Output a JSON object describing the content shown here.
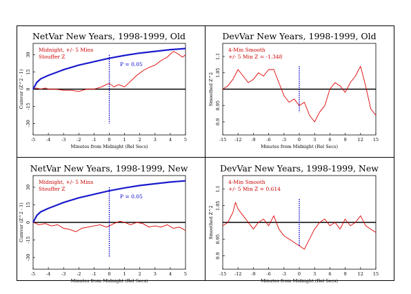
{
  "colors": {
    "background": "#ffffff",
    "frame": "#000000",
    "data_line": "#dd0000",
    "envelope": "#1a1acc",
    "midnight_marker": "#0000cc",
    "annotation_red": "#cc0000",
    "annotation_blue": "#0000cc"
  },
  "chart_data": [
    {
      "type": "line",
      "title": "NetVar New Years, 1998-1999, Old",
      "xlabel": "Minutes from Midnight (Rel Secs)",
      "ylabel": "Cumvar (Z^2 - 1)",
      "xlim": [
        -5,
        5
      ],
      "ylim": [
        -40,
        40
      ],
      "x_ticks": [
        -5,
        -4,
        -3,
        -2,
        -1,
        0,
        1,
        2,
        3,
        4,
        5
      ],
      "y_ticks": [
        -30,
        -15,
        0,
        15,
        30
      ],
      "annotations": [
        "Midnight, +/- 5 Mins",
        "Stouffer Z"
      ],
      "envelope_label": "P = 0.05",
      "midnight_x": 0,
      "series": [
        {
          "role": "data",
          "x": [
            -5,
            -4.8,
            -4.5,
            -4.2,
            -4,
            -3.5,
            -3,
            -2.5,
            -2,
            -1.5,
            -1,
            -0.5,
            -0.2,
            0,
            0.3,
            0.6,
            1,
            1.4,
            1.8,
            2.2,
            2.6,
            3,
            3.4,
            3.8,
            4.2,
            4.5,
            4.8,
            5
          ],
          "y": [
            0,
            1,
            0,
            1,
            0,
            0,
            -1,
            -1,
            -2,
            0,
            0,
            2,
            4,
            5,
            2,
            4,
            2,
            7,
            12,
            16,
            19,
            21,
            25,
            28,
            33,
            31,
            28,
            30
          ]
        },
        {
          "role": "envelope",
          "x": [
            -5,
            -4.75,
            -4.5,
            -4,
            -3.5,
            -3,
            -2,
            -1,
            0,
            1,
            2,
            3,
            4,
            5
          ],
          "y": [
            0,
            6,
            9,
            12,
            14.5,
            17,
            21,
            24,
            27,
            29.5,
            31.5,
            33,
            34.5,
            35.5
          ]
        }
      ]
    },
    {
      "type": "line",
      "title": "DevVar New Years, 1998-1999, Old",
      "xlabel": "Minutes from Midnight (Rel Secs)",
      "ylabel": "Smoothed Z^2",
      "xlim": [
        -15,
        15
      ],
      "ylim": [
        0.86,
        1.14
      ],
      "x_ticks": [
        -15,
        -12,
        -9,
        -6,
        -3,
        0,
        3,
        6,
        9,
        12,
        15
      ],
      "y_ticks": [
        0.9,
        0.95,
        1.0,
        1.05,
        1.1
      ],
      "y_tick_labels": [
        "0.9",
        "0.95",
        "",
        "1.05",
        "1.1"
      ],
      "annotations": [
        "4-Min Smooth",
        "+/- 5 Min Z = -1.348"
      ],
      "midnight_x": 0,
      "series": [
        {
          "role": "data",
          "x": [
            -15,
            -14,
            -13,
            -12,
            -11,
            -10,
            -9,
            -8,
            -7,
            -6,
            -5,
            -4,
            -3,
            -2,
            -1,
            0,
            1,
            2,
            3,
            4,
            5,
            6,
            7,
            8,
            9,
            10,
            11,
            12,
            13,
            14,
            15
          ],
          "y": [
            1.0,
            1.01,
            1.03,
            1.06,
            1.04,
            1.02,
            1.03,
            1.05,
            1.04,
            1.06,
            1.06,
            1.02,
            0.98,
            0.96,
            0.97,
            0.95,
            0.96,
            0.92,
            0.9,
            0.93,
            0.95,
            1.0,
            1.02,
            1.01,
            0.99,
            1.02,
            1.04,
            1.07,
            1.01,
            0.94,
            0.92
          ]
        }
      ]
    },
    {
      "type": "line",
      "title": "NetVar New Years, 1998-1999, New",
      "xlabel": "Minutes from Midnight (Rel Secs)",
      "ylabel": "Cumvar (Z^2 - 1)",
      "xlim": [
        -5,
        5
      ],
      "ylim": [
        -40,
        40
      ],
      "x_ticks": [
        -5,
        -4,
        -3,
        -2,
        -1,
        0,
        1,
        2,
        3,
        4,
        5
      ],
      "y_ticks": [
        -30,
        -15,
        0,
        15,
        30
      ],
      "annotations": [
        "Midnight, +/- 5 Mins",
        "Stouffer Z"
      ],
      "envelope_label": "P = 0.05",
      "midnight_x": 0,
      "series": [
        {
          "role": "data",
          "x": [
            -5,
            -4.6,
            -4.2,
            -3.8,
            -3.4,
            -3,
            -2.6,
            -2.2,
            -1.8,
            -1.4,
            -1,
            -0.6,
            -0.2,
            0,
            0.3,
            0.7,
            1,
            1.4,
            1.8,
            2.2,
            2.6,
            3,
            3.4,
            3.8,
            4.2,
            4.6,
            5
          ],
          "y": [
            0,
            -2,
            -1,
            -3,
            -2,
            -5,
            -6,
            -8,
            -5,
            -4,
            -3,
            -2,
            -4,
            -3,
            -1,
            1,
            0,
            -2,
            0,
            -1,
            -4,
            -3,
            -4,
            -2,
            -5,
            -4,
            -7
          ]
        },
        {
          "role": "envelope",
          "x": [
            -5,
            -4.75,
            -4.5,
            -4,
            -3.5,
            -3,
            -2,
            -1,
            0,
            1,
            2,
            3,
            4,
            5
          ],
          "y": [
            0,
            6,
            9,
            12,
            14.5,
            17,
            21,
            24,
            27,
            29.5,
            31.5,
            33,
            34.5,
            35.5
          ]
        }
      ]
    },
    {
      "type": "line",
      "title": "DevVar New Years, 1998-1999, New",
      "xlabel": "Minutes from Midnight (Rel Secs)",
      "ylabel": "Smoothed Z^2",
      "xlim": [
        -15,
        15
      ],
      "ylim": [
        0.86,
        1.14
      ],
      "x_ticks": [
        -15,
        -12,
        -9,
        -6,
        -3,
        0,
        3,
        6,
        9,
        12,
        15
      ],
      "y_ticks": [
        0.9,
        0.95,
        1.0,
        1.05,
        1.1
      ],
      "y_tick_labels": [
        "0.9",
        "0.95",
        "",
        "1.05",
        "1.1"
      ],
      "annotations": [
        "4-Min Smooth",
        "+/- 5 Min Z = 0.614"
      ],
      "midnight_x": 0,
      "series": [
        {
          "role": "data",
          "x": [
            -15,
            -14,
            -13,
            -12.5,
            -12,
            -11,
            -10,
            -9,
            -8,
            -7,
            -6,
            -5,
            -4,
            -3,
            -2,
            -1,
            0,
            1,
            2,
            3,
            4,
            5,
            6,
            7,
            8,
            9,
            10,
            11,
            12,
            13,
            14,
            15
          ],
          "y": [
            0.99,
            1.0,
            1.03,
            1.06,
            1.04,
            1.02,
            1.0,
            0.98,
            1.0,
            1.01,
            0.99,
            1.02,
            0.98,
            0.96,
            0.95,
            0.94,
            0.93,
            0.92,
            0.95,
            0.98,
            1.0,
            1.01,
            0.99,
            1.0,
            0.98,
            1.01,
            0.99,
            1.0,
            1.02,
            0.99,
            0.98,
            0.97
          ]
        }
      ]
    }
  ]
}
